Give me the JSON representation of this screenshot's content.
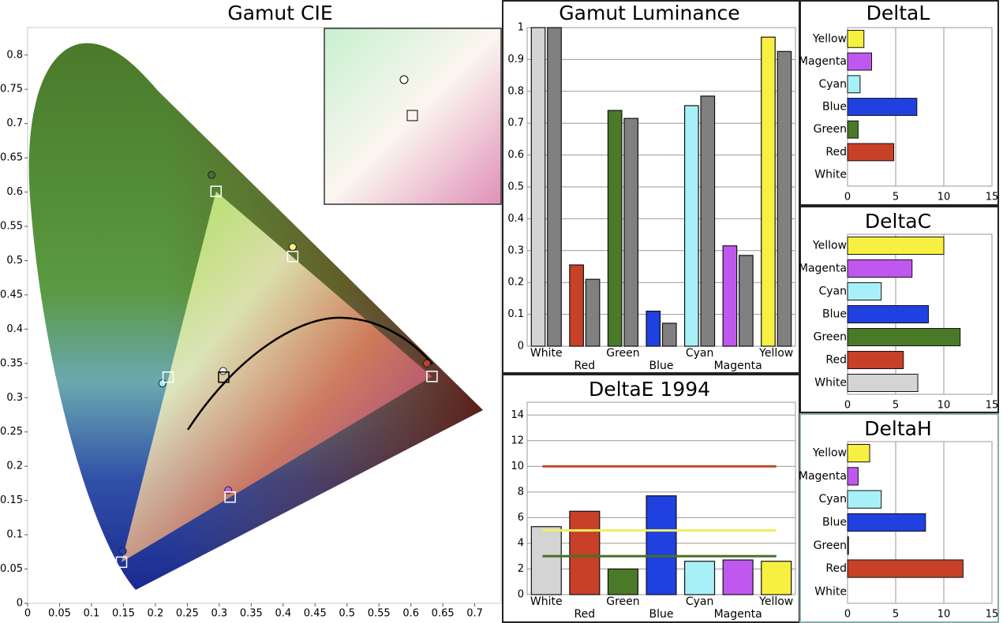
{
  "chart_data": [
    {
      "type": "scatter",
      "title": "Gamut CIE",
      "xlim": [
        0,
        0.74
      ],
      "ylim": [
        0,
        0.84
      ],
      "xticks": [
        0,
        0.05,
        0.1,
        0.15,
        0.2,
        0.25,
        0.3,
        0.35,
        0.4,
        0.45,
        0.5,
        0.55,
        0.6,
        0.65,
        0.7
      ],
      "yticks": [
        0,
        0.05,
        0.1,
        0.15,
        0.2,
        0.25,
        0.3,
        0.35,
        0.4,
        0.45,
        0.5,
        0.55,
        0.6,
        0.65,
        0.7,
        0.75,
        0.8
      ],
      "series": [
        {
          "marker": "circle",
          "x": [
            0.625,
            0.288,
            0.149,
            0.211,
            0.314,
            0.415,
            0.306
          ],
          "y": [
            0.35,
            0.625,
            0.076,
            0.321,
            0.165,
            0.52,
            0.339
          ],
          "colors": [
            "#c84028",
            "#4a6a38",
            "#2040c0",
            "#a0f0f0",
            "#c060e0",
            "#f8f080",
            "#ffffff"
          ]
        },
        {
          "marker": "square",
          "x": [
            0.633,
            0.295,
            0.147,
            0.22,
            0.317,
            0.415,
            0.307
          ],
          "y": [
            0.331,
            0.601,
            0.06,
            0.33,
            0.155,
            0.506,
            0.33
          ],
          "colors": [
            "#ffffff",
            "#ffffff",
            "#ffffff",
            "#ffffff",
            "#ffffff",
            "#ffffff",
            "#000000"
          ]
        }
      ]
    },
    {
      "type": "bar",
      "title": "Gamut Luminance",
      "stagger_labels": true,
      "grid": true,
      "categories": [
        "White",
        "Red",
        "Green",
        "Blue",
        "Cyan",
        "Magenta",
        "Yellow"
      ],
      "ylim": [
        0,
        1
      ],
      "yticks": [
        0,
        0.1,
        0.2,
        0.3,
        0.4,
        0.5,
        0.6,
        0.7,
        0.8,
        0.9,
        1
      ],
      "series": [
        {
          "colors": [
            "#d4d4d4",
            "#c84028",
            "#4a7a28",
            "#2040e0",
            "#a8f0f8",
            "#c058f0",
            "#f8f040"
          ],
          "values": [
            1,
            0.255,
            0.74,
            0.11,
            0.755,
            0.315,
            0.97
          ]
        },
        {
          "color": "#808080",
          "values": [
            1,
            0.21,
            0.715,
            0.072,
            0.785,
            0.285,
            0.925
          ]
        }
      ]
    },
    {
      "type": "bar",
      "title": "DeltaE 1994",
      "stagger_labels": true,
      "grid": true,
      "categories": [
        "White",
        "Red",
        "Green",
        "Blue",
        "Cyan",
        "Magenta",
        "Yellow"
      ],
      "ylim": [
        0,
        15
      ],
      "yticks": [
        0,
        2,
        4,
        6,
        8,
        10,
        12,
        14
      ],
      "values": [
        5.3,
        6.5,
        2.0,
        7.7,
        2.6,
        2.7,
        2.6
      ],
      "colors": [
        "#d4d4d4",
        "#c84028",
        "#4a7a28",
        "#2040e0",
        "#a8f0f8",
        "#c058f0",
        "#f8f040"
      ],
      "reference_lines": [
        {
          "value": 10,
          "color": "#b85030"
        },
        {
          "value": 5,
          "color": "#f0f060"
        },
        {
          "value": 3,
          "color": "#4a7028"
        }
      ]
    },
    {
      "type": "bar",
      "orientation": "horizontal",
      "title": "DeltaL",
      "grid": true,
      "categories": [
        "Yellow",
        "Magenta",
        "Cyan",
        "Blue",
        "Green",
        "Red",
        "White"
      ],
      "xlim": [
        0,
        15
      ],
      "xticks": [
        0,
        5,
        10,
        15
      ],
      "values": [
        1.7,
        2.5,
        1.3,
        7.2,
        1.1,
        4.8,
        0
      ],
      "colors": [
        "#f8f040",
        "#c058f0",
        "#a8f0f8",
        "#2040e0",
        "#4a7a28",
        "#c84028",
        "#d4d4d4"
      ]
    },
    {
      "type": "bar",
      "orientation": "horizontal",
      "title": "DeltaC",
      "grid": true,
      "categories": [
        "Yellow",
        "Magenta",
        "Cyan",
        "Blue",
        "Green",
        "Red",
        "White"
      ],
      "xlim": [
        0,
        15
      ],
      "xticks": [
        0,
        5,
        10,
        15
      ],
      "values": [
        10,
        6.7,
        3.5,
        8.4,
        11.7,
        5.8,
        7.3
      ],
      "colors": [
        "#f8f040",
        "#c058f0",
        "#a8f0f8",
        "#2040e0",
        "#4a7a28",
        "#c84028",
        "#d4d4d4"
      ]
    },
    {
      "type": "bar",
      "orientation": "horizontal",
      "title": "DeltaH",
      "grid": true,
      "categories": [
        "Yellow",
        "Magenta",
        "Cyan",
        "Blue",
        "Green",
        "Red",
        "White"
      ],
      "xlim": [
        0,
        15
      ],
      "xticks": [
        0,
        5,
        10,
        15
      ],
      "values": [
        2.3,
        1.1,
        3.5,
        8.1,
        0.1,
        12,
        0
      ],
      "colors": [
        "#f8f040",
        "#c058f0",
        "#a8f0f8",
        "#2040e0",
        "#4a7a28",
        "#c84028",
        "#d4d4d4"
      ]
    }
  ]
}
